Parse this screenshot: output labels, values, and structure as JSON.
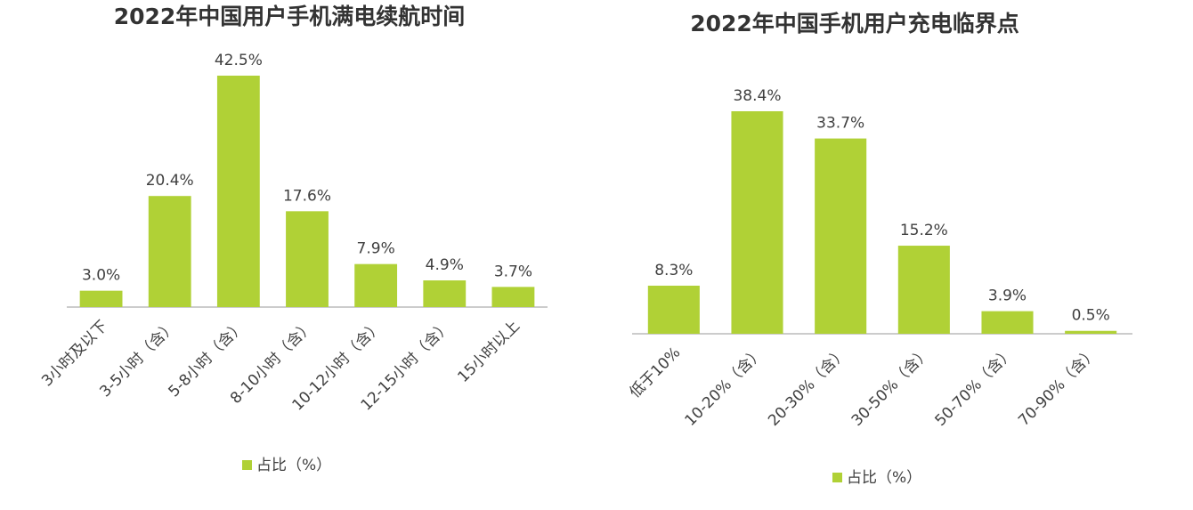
{
  "chart_data": [
    {
      "type": "bar",
      "title": "2022年中国用户手机满电续航时间",
      "categories": [
        "3小时及以下",
        "3-5小时（含）",
        "5-8小时（含）",
        "8-10小时（含）",
        "10-12小时（含）",
        "12-15小时（含）",
        "15小时以上"
      ],
      "series": [
        {
          "name": "占比（%）",
          "color": "#b0d136",
          "values": [
            3.0,
            20.4,
            42.5,
            17.6,
            7.9,
            4.9,
            3.7
          ],
          "value_labels": [
            "3.0%",
            "20.4%",
            "42.5%",
            "17.6%",
            "7.9%",
            "4.9%",
            "3.7%"
          ]
        }
      ]
    },
    {
      "type": "bar",
      "title": "2022年中国手机用户充电临界点",
      "categories": [
        "低于10%",
        "10-20%（含）",
        "20-30%（含）",
        "30-50%（含）",
        "50-70%（含）",
        "70-90%（含）"
      ],
      "series": [
        {
          "name": "占比（%）",
          "color": "#b0d136",
          "values": [
            8.3,
            38.4,
            33.7,
            15.2,
            3.9,
            0.5
          ],
          "value_labels": [
            "8.3%",
            "38.4%",
            "33.7%",
            "15.2%",
            "3.9%",
            "0.5%"
          ]
        }
      ]
    }
  ]
}
